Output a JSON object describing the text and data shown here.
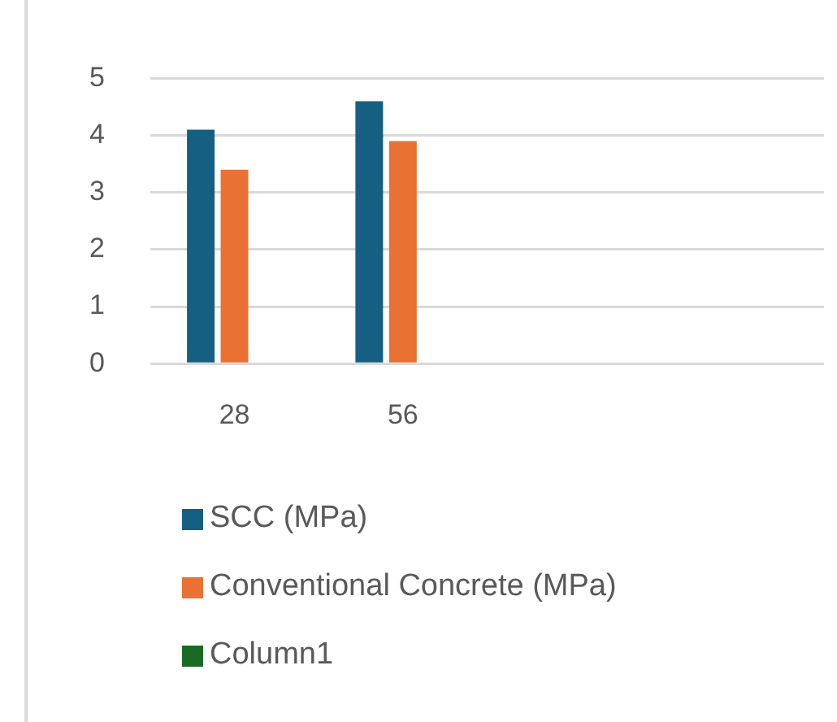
{
  "chart_data": {
    "type": "bar",
    "categories": [
      "28",
      "56",
      null,
      null
    ],
    "series": [
      {
        "name": "SCC (MPa)",
        "color": "#156082",
        "values": [
          4.1,
          4.6,
          null,
          null
        ]
      },
      {
        "name": "Conventional Concrete (MPa)",
        "color": "#e97132",
        "values": [
          3.4,
          3.9,
          null,
          null
        ]
      },
      {
        "name": "Column1",
        "color": "#196b24",
        "values": [
          null,
          null,
          null,
          null
        ]
      }
    ],
    "ylim": [
      0,
      5
    ],
    "yticks": [
      0,
      1,
      2,
      3,
      4,
      5
    ],
    "grid": "y",
    "legend": "bottom"
  }
}
